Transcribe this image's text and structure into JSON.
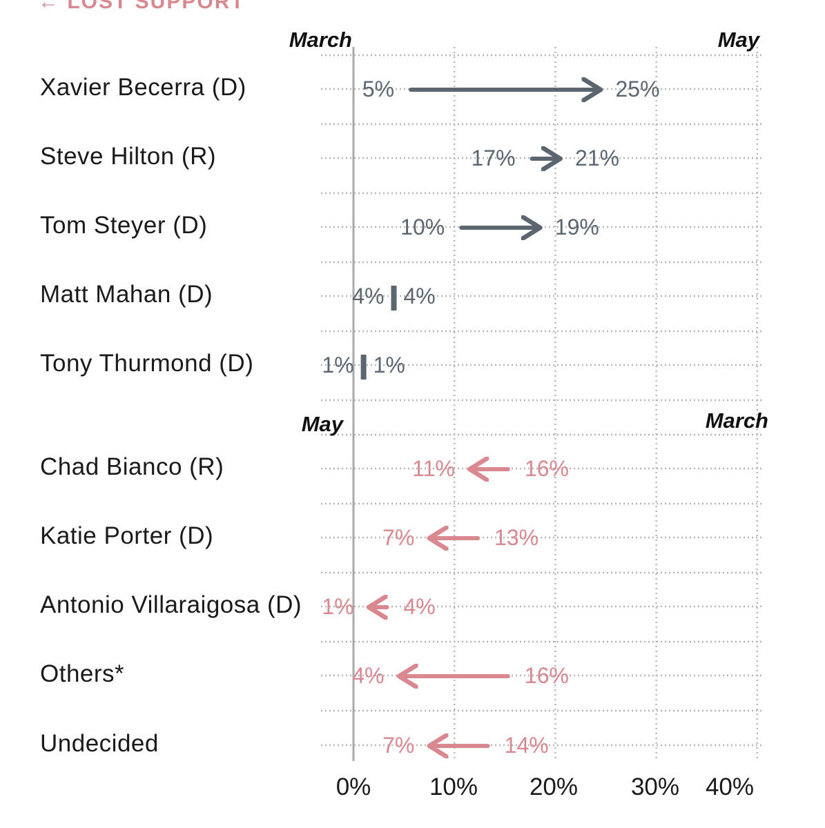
{
  "section_label": "← LOST SUPPORT",
  "colors": {
    "gained": "#5b6670",
    "lost": "#d98890",
    "grid": "#b5b5b5",
    "zero_line": "#aaaaaa"
  },
  "chart_data": {
    "type": "arrow",
    "xlim": [
      0,
      40
    ],
    "x_ticks": [
      "0%",
      "10%",
      "20%",
      "30%",
      "40%"
    ],
    "x_tick_values": [
      0,
      10,
      20,
      30,
      40
    ],
    "grid": true,
    "groups": [
      {
        "name": "gained",
        "header_left": "March",
        "header_right": "May",
        "rows": [
          {
            "label": "Xavier Becerra (D)",
            "march": 5,
            "may": 25,
            "march_label": "5%",
            "may_label": "25%"
          },
          {
            "label": "Steve Hilton (R)",
            "march": 17,
            "may": 21,
            "march_label": "17%",
            "may_label": "21%"
          },
          {
            "label": "Tom Steyer (D)",
            "march": 10,
            "may": 19,
            "march_label": "10%",
            "may_label": "19%"
          },
          {
            "label": "Matt Mahan (D)",
            "march": 4,
            "may": 4,
            "march_label": "4%",
            "may_label": "4%"
          },
          {
            "label": "Tony Thurmond (D)",
            "march": 1,
            "may": 1,
            "march_label": "1%",
            "may_label": "1%"
          }
        ]
      },
      {
        "name": "lost",
        "header_left": "May",
        "header_right": "March",
        "rows": [
          {
            "label": "Chad Bianco (R)",
            "march": 16,
            "may": 11,
            "march_label": "16%",
            "may_label": "11%"
          },
          {
            "label": "Katie Porter (D)",
            "march": 13,
            "may": 7,
            "march_label": "13%",
            "may_label": "7%"
          },
          {
            "label": "Antonio Villaraigosa (D)",
            "march": 4,
            "may": 1,
            "march_label": "4%",
            "may_label": "1%"
          },
          {
            "label": "Others*",
            "march": 16,
            "may": 4,
            "march_label": "16%",
            "may_label": "4%"
          },
          {
            "label": "Undecided",
            "march": 14,
            "may": 7,
            "march_label": "14%",
            "may_label": "7%"
          }
        ]
      }
    ]
  }
}
